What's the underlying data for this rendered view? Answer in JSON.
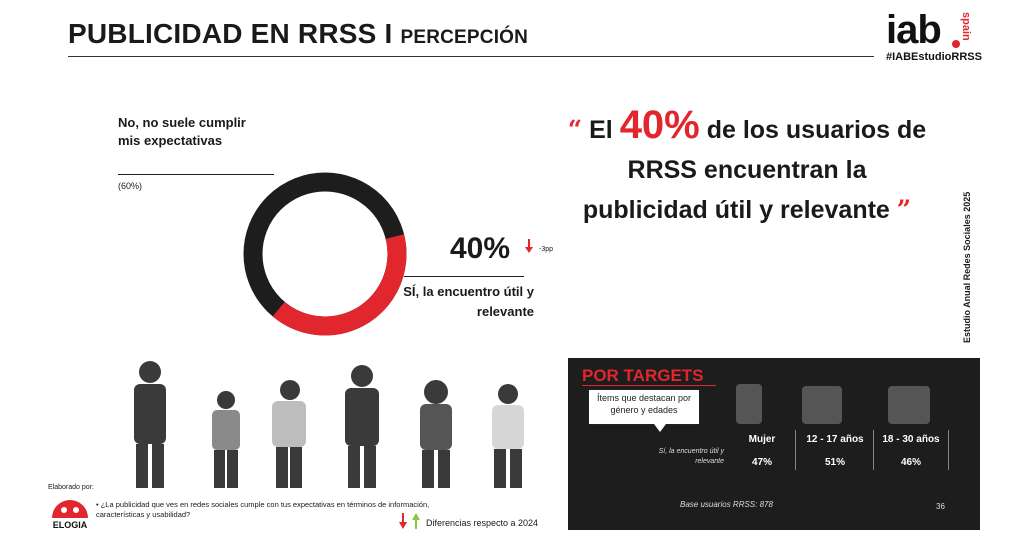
{
  "header": {
    "title_main": "PUBLICIDAD EN RRSS I",
    "title_sub": "PERCEPCIÓN",
    "logo_text": "iab",
    "logo_sub": "spain",
    "hashtag": "#IABEstudioRRSS"
  },
  "donut": {
    "no_label": "No, no suele cumplir mis expectativas",
    "no_pct_label": "(60%)",
    "yes_pct": "40%",
    "yes_change": "-3pp",
    "yes_label": "SÍ, la encuentro útil y relevante",
    "yes_fraction": 0.4,
    "colors": {
      "yes": "#e1262d",
      "no": "#1d1d1d"
    }
  },
  "quote": {
    "open_mark": "“",
    "before": "El",
    "highlight": "40%",
    "after": "de los usuarios de RRSS encuentran la publicidad útil y relevante",
    "close_mark": "”"
  },
  "vertical_text": "Estudio Anual Redes Sociales 2025",
  "footer": {
    "elaborado": "Elaborado por:",
    "brand": "ELOGIA",
    "question": "¿La publicidad que ves en redes sociales cumple con tus expectativas en términos de información, características y usabilidad?",
    "legend": "Diferencias respecto a 2024"
  },
  "targets": {
    "title": "POR TARGETS",
    "callout": "Ítems que destacan por género y edades",
    "row_label": "Sí, la encuentro útil y relevante",
    "columns": [
      {
        "header": "Mujer",
        "value": "47%"
      },
      {
        "header": "12 - 17 años",
        "value": "51%"
      },
      {
        "header": "18 - 30 años",
        "value": "46%"
      }
    ],
    "base": "Base usuarios RRSS: 878",
    "page": "36"
  },
  "accent_color": "#e1262d"
}
